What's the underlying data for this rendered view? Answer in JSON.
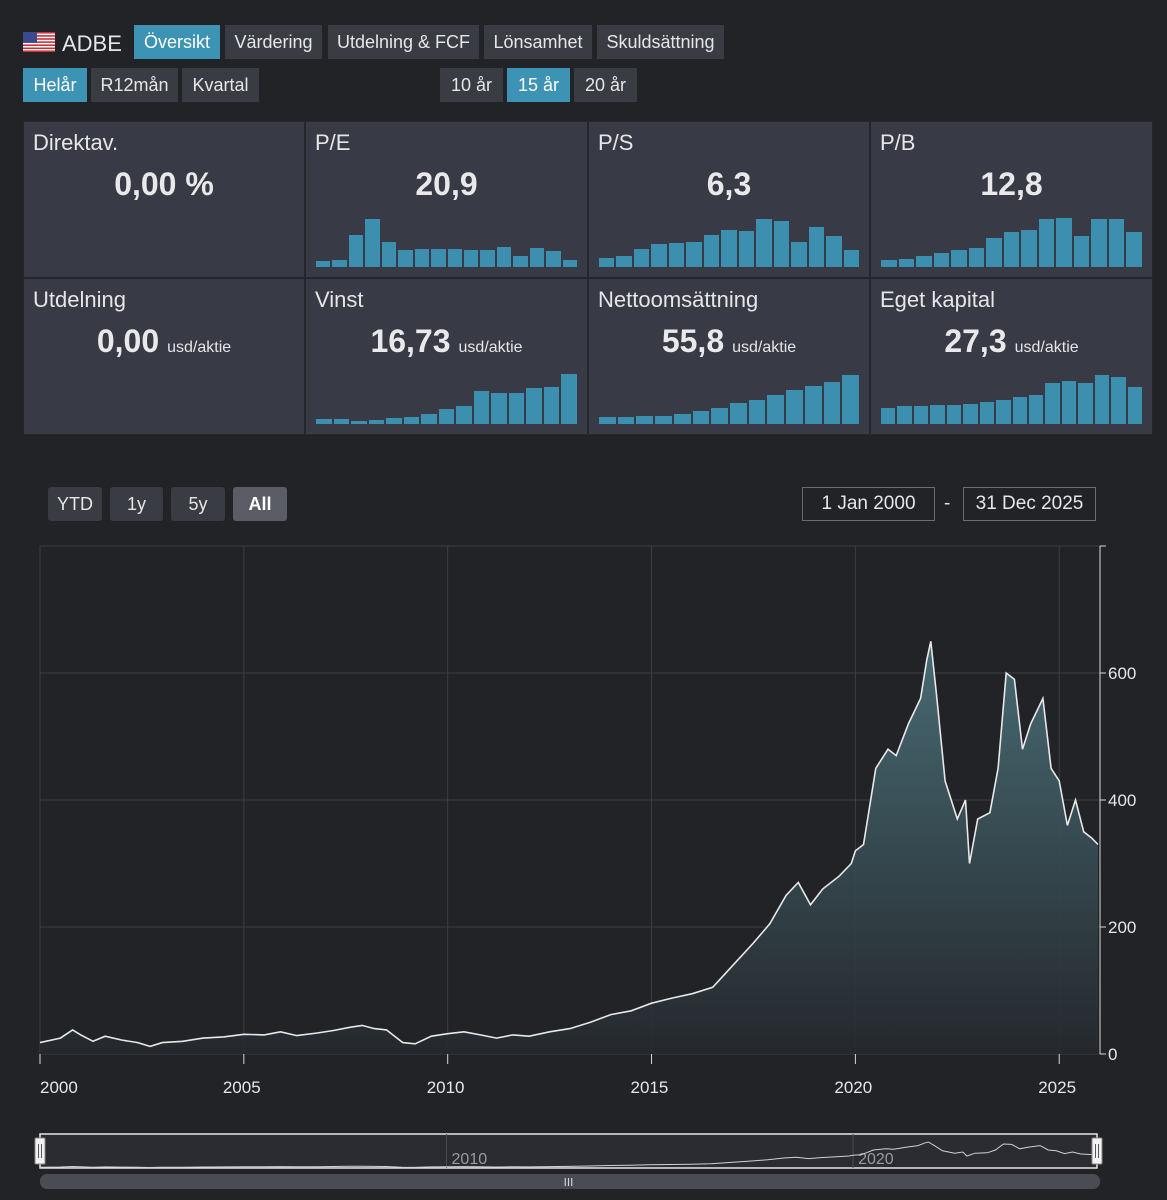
{
  "ticker": "ADBE",
  "flag": "us-flag-icon",
  "tabs": [
    "Översikt",
    "Värdering",
    "Utdelning & FCF",
    "Lönsamhet",
    "Skuldsättning"
  ],
  "periods": [
    "Helår",
    "R12mån",
    "Kvartal"
  ],
  "horizons": [
    "10 år",
    "15 år",
    "20 år"
  ],
  "cards": [
    {
      "title": "Direktav.",
      "value": "0,00 %",
      "unit": "",
      "bars": []
    },
    {
      "title": "P/E",
      "value": "20,9",
      "unit": "",
      "bars": [
        0.12,
        0.14,
        0.62,
        0.92,
        0.48,
        0.32,
        0.35,
        0.34,
        0.34,
        0.33,
        0.32,
        0.38,
        0.22,
        0.36,
        0.31,
        0.14
      ]
    },
    {
      "title": "P/S",
      "value": "6,3",
      "unit": "",
      "bars": [
        0.17,
        0.22,
        0.35,
        0.45,
        0.47,
        0.48,
        0.62,
        0.72,
        0.7,
        0.93,
        0.88,
        0.48,
        0.77,
        0.6,
        0.32
      ]
    },
    {
      "title": "P/B",
      "value": "12,8",
      "unit": "",
      "bars": [
        0.13,
        0.16,
        0.22,
        0.27,
        0.32,
        0.36,
        0.55,
        0.67,
        0.72,
        0.92,
        0.94,
        0.6,
        0.92,
        0.92,
        0.68
      ]
    },
    {
      "title": "Utdelning",
      "value": "0,00",
      "unit": "usd/aktie",
      "bars": []
    },
    {
      "title": "Vinst",
      "value": "16,73",
      "unit": "usd/aktie",
      "bars": [
        0.1,
        0.09,
        0.06,
        0.07,
        0.11,
        0.13,
        0.2,
        0.28,
        0.35,
        0.64,
        0.6,
        0.6,
        0.7,
        0.72,
        0.97
      ]
    },
    {
      "title": "Nettoomsättning",
      "value": "55,8",
      "unit": "usd/aktie",
      "bars": [
        0.14,
        0.14,
        0.15,
        0.16,
        0.19,
        0.25,
        0.3,
        0.4,
        0.47,
        0.55,
        0.65,
        0.73,
        0.8,
        0.94
      ]
    },
    {
      "title": "Eget kapital",
      "value": "27,3",
      "unit": "usd/aktie",
      "bars": [
        0.3,
        0.35,
        0.35,
        0.37,
        0.37,
        0.38,
        0.42,
        0.46,
        0.52,
        0.55,
        0.78,
        0.82,
        0.78,
        0.95,
        0.9,
        0.72
      ]
    }
  ],
  "ranges": [
    "YTD",
    "1y",
    "5y",
    "All"
  ],
  "date_from": "1 Jan 2000",
  "date_sep": "-",
  "date_to": "31 Dec 2025",
  "navigator": {
    "labels": [
      "2010",
      "2020"
    ],
    "handle": "III"
  },
  "chart_data": {
    "type": "area",
    "title": "ADBE",
    "xlabel": "",
    "ylabel": "",
    "xlim": [
      2000,
      2026
    ],
    "ylim": [
      0,
      800
    ],
    "x_ticks": [
      2000,
      2005,
      2010,
      2015,
      2020,
      2025
    ],
    "y_ticks": [
      0,
      200,
      400,
      600
    ],
    "series": [
      {
        "name": "ADBE",
        "x": [
          2000.0,
          2000.5,
          2000.8,
          2001.0,
          2001.3,
          2001.6,
          2002.0,
          2002.4,
          2002.7,
          2003.0,
          2003.5,
          2004.0,
          2004.5,
          2005.0,
          2005.5,
          2005.9,
          2006.3,
          2006.8,
          2007.2,
          2007.6,
          2007.9,
          2008.2,
          2008.5,
          2008.9,
          2009.2,
          2009.6,
          2010.0,
          2010.4,
          2010.8,
          2011.2,
          2011.6,
          2012.0,
          2012.5,
          2013.0,
          2013.5,
          2014.0,
          2014.5,
          2015.0,
          2015.5,
          2016.0,
          2016.5,
          2017.0,
          2017.5,
          2017.9,
          2018.3,
          2018.6,
          2018.9,
          2019.2,
          2019.6,
          2019.9,
          2020.0,
          2020.2,
          2020.5,
          2020.8,
          2021.0,
          2021.3,
          2021.6,
          2021.75,
          2021.85,
          2022.0,
          2022.2,
          2022.5,
          2022.7,
          2022.8,
          2023.0,
          2023.3,
          2023.5,
          2023.7,
          2023.9,
          2024.1,
          2024.3,
          2024.6,
          2024.8,
          2025.0,
          2025.2,
          2025.4,
          2025.6,
          2025.8,
          2025.95
        ],
        "values": [
          18,
          25,
          38,
          30,
          20,
          28,
          22,
          18,
          12,
          18,
          20,
          25,
          27,
          31,
          30,
          35,
          29,
          33,
          37,
          42,
          45,
          40,
          38,
          18,
          16,
          28,
          32,
          35,
          30,
          25,
          30,
          28,
          35,
          40,
          50,
          62,
          68,
          80,
          88,
          95,
          105,
          140,
          175,
          205,
          250,
          270,
          235,
          260,
          280,
          300,
          320,
          330,
          450,
          480,
          470,
          520,
          560,
          620,
          650,
          560,
          430,
          370,
          400,
          300,
          370,
          380,
          450,
          600,
          590,
          480,
          520,
          560,
          450,
          430,
          360,
          400,
          350,
          340,
          330
        ]
      }
    ]
  }
}
